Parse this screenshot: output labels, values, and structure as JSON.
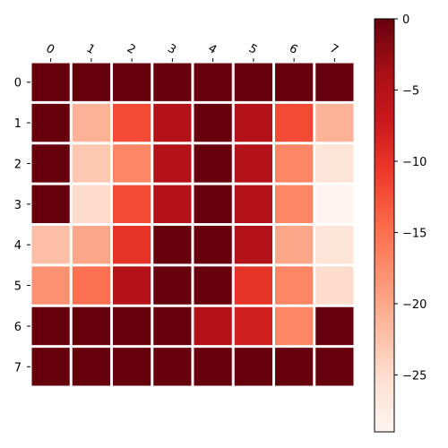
{
  "chart_data": {
    "type": "heatmap",
    "title": "",
    "xlabel": "",
    "ylabel": "",
    "x_categories": [
      "0",
      "1",
      "2",
      "3",
      "4",
      "5",
      "6",
      "7"
    ],
    "y_categories": [
      "0",
      "1",
      "2",
      "3",
      "4",
      "5",
      "6",
      "7"
    ],
    "values": [
      [
        0,
        0,
        0,
        0,
        0,
        0,
        0,
        0
      ],
      [
        0,
        -21,
        -12,
        -5,
        0,
        -5,
        -12,
        -21
      ],
      [
        0,
        -23,
        -17,
        -5,
        0,
        -5,
        -17,
        -26
      ],
      [
        0,
        -25,
        -12,
        -5,
        0,
        -5,
        -17,
        -29
      ],
      [
        -22,
        -20,
        -10,
        0,
        0,
        -5,
        -20,
        -26
      ],
      [
        -18,
        -15,
        -5,
        0,
        0,
        -10,
        -17,
        -25
      ],
      [
        0,
        0,
        0,
        0,
        -5,
        -8,
        -17,
        0
      ],
      [
        0,
        0,
        0,
        0,
        0,
        0,
        0,
        0
      ]
    ],
    "colormap": "Reds_r",
    "vmin": -29,
    "vmax": 0,
    "colorbar": {
      "ticks": [
        0,
        -5,
        -10,
        -15,
        -20,
        -25
      ],
      "tick_labels": [
        "0",
        "−5",
        "−10",
        "−15",
        "−20",
        "−25"
      ]
    },
    "grid": false,
    "x_ticks_position": "top"
  }
}
